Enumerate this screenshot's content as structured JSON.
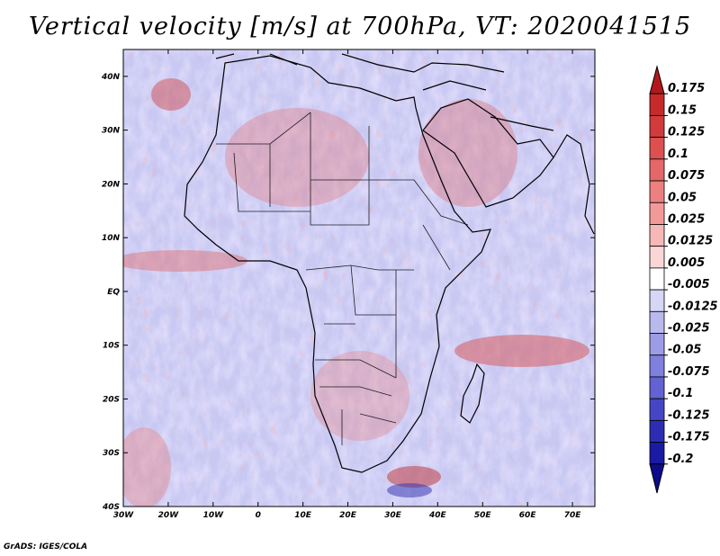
{
  "title": "Vertical velocity [m/s] at 700hPa, VT: 2020041515",
  "footer": "GrADS: IGES/COLA",
  "map": {
    "region": "Africa",
    "lon_range": [
      -30,
      75
    ],
    "lat_range": [
      -40,
      45
    ],
    "lon_ticks": [
      {
        "value": -30,
        "label": "30W"
      },
      {
        "value": -20,
        "label": "20W"
      },
      {
        "value": -10,
        "label": "10W"
      },
      {
        "value": 0,
        "label": "0"
      },
      {
        "value": 10,
        "label": "10E"
      },
      {
        "value": 20,
        "label": "20E"
      },
      {
        "value": 30,
        "label": "30E"
      },
      {
        "value": 40,
        "label": "40E"
      },
      {
        "value": 50,
        "label": "50E"
      },
      {
        "value": 60,
        "label": "60E"
      },
      {
        "value": 70,
        "label": "70E"
      }
    ],
    "lat_ticks": [
      {
        "value": 40,
        "label": "40N"
      },
      {
        "value": 30,
        "label": "30N"
      },
      {
        "value": 20,
        "label": "20N"
      },
      {
        "value": 10,
        "label": "10N"
      },
      {
        "value": 0,
        "label": "EQ"
      },
      {
        "value": -10,
        "label": "10S"
      },
      {
        "value": -20,
        "label": "20S"
      },
      {
        "value": -30,
        "label": "30S"
      },
      {
        "value": -40,
        "label": "40S"
      }
    ]
  },
  "colorbar": {
    "labels": [
      "0.175",
      "0.15",
      "0.125",
      "0.1",
      "0.075",
      "0.05",
      "0.025",
      "0.0125",
      "0.005",
      "-0.005",
      "-0.0125",
      "-0.025",
      "-0.05",
      "-0.075",
      "-0.1",
      "-0.125",
      "-0.175",
      "-0.2"
    ],
    "colors": [
      "#b2181b",
      "#c62a2a",
      "#d23b3b",
      "#dc5050",
      "#e56767",
      "#ec8080",
      "#f29a9a",
      "#f6b7b7",
      "#fad6d6",
      "#ffffff",
      "#d6d6f6",
      "#b9b9ee",
      "#9c9ce6",
      "#7f7fde",
      "#6262d2",
      "#4646c4",
      "#2d2db4",
      "#1a1aa2",
      "#0c0c8c"
    ]
  }
}
